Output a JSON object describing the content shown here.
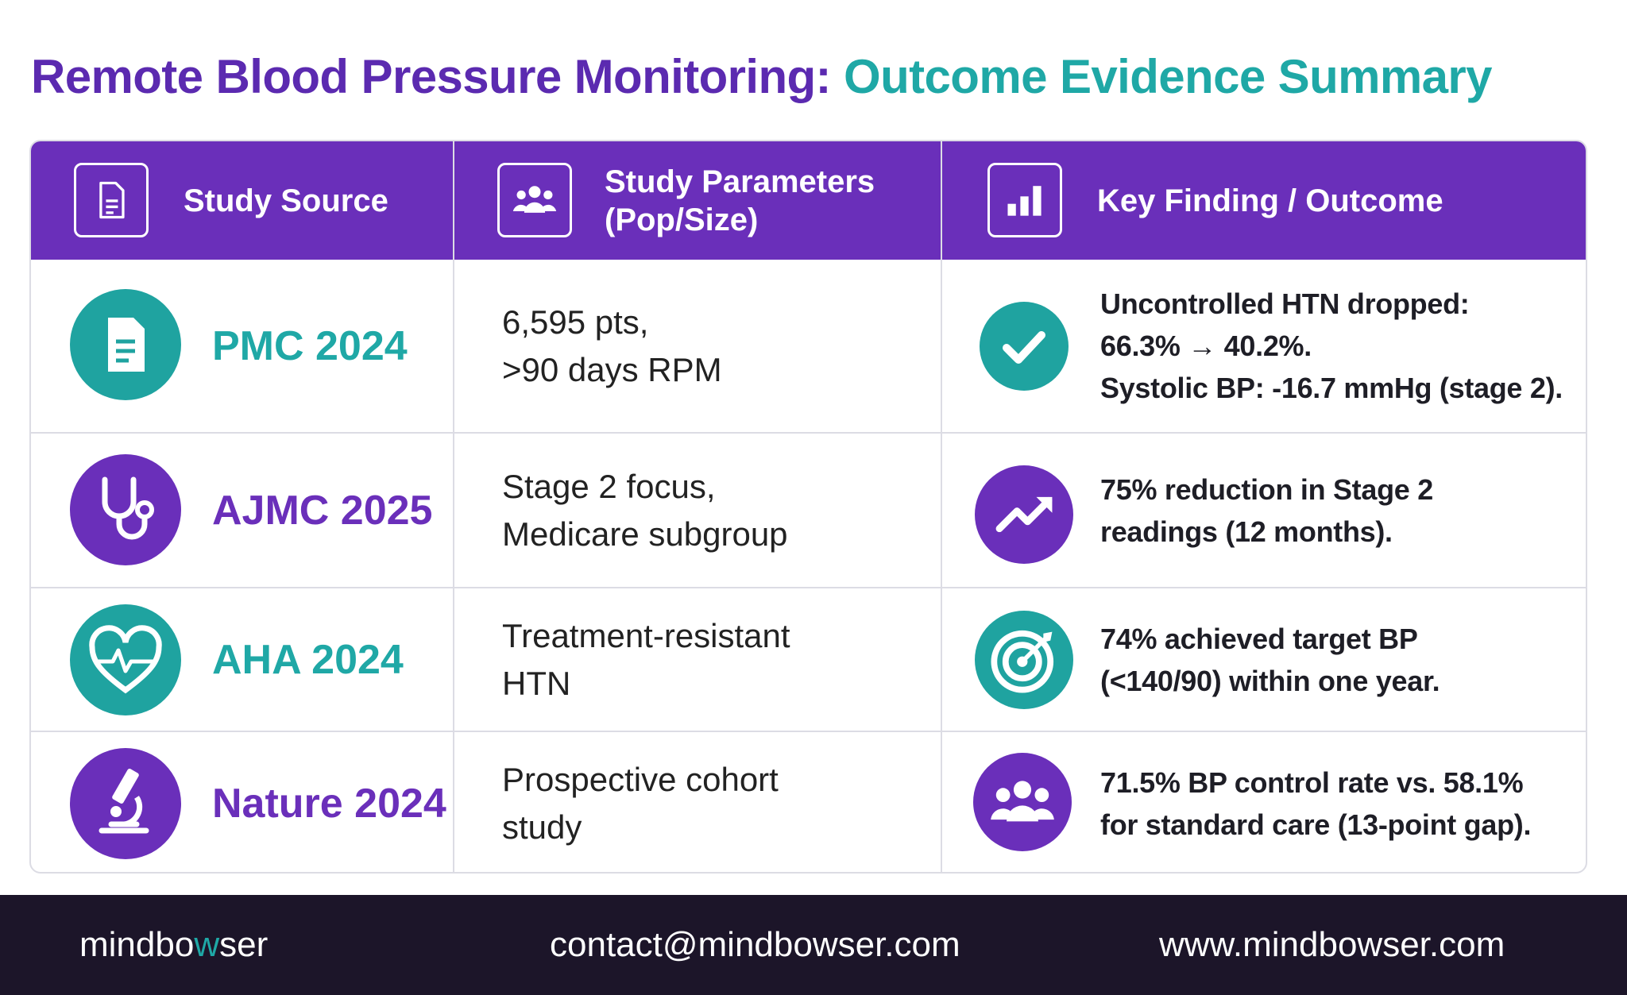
{
  "header": {
    "title": [
      "Remote Blood Pressure Monitoring:",
      "Outcome Evidence Summary"
    ]
  },
  "table": {
    "columns": [
      "Study Source",
      [
        "Study Parameters",
        "(Pop/Size)"
      ],
      "Key Finding / Outcome"
    ],
    "rows": [
      {
        "source": "PMC 2024",
        "params": [
          "6,595 pts,",
          ">90 days RPM"
        ],
        "finding": [
          "Uncontrolled HTN dropped:",
          "66.3% → 40.2%.",
          "Systolic BP: -16.7 mmHg (stage 2)."
        ]
      },
      {
        "source": "AJMC 2025",
        "params": [
          "Stage 2 focus,",
          "Medicare subgroup"
        ],
        "finding": [
          "75% reduction in Stage 2",
          "readings (12 months)."
        ]
      },
      {
        "source": "AHA 2024",
        "params": [
          "Treatment-resistant",
          "HTN"
        ],
        "finding": [
          "74% achieved target BP",
          "(<140/90) within one year."
        ]
      },
      {
        "source": "Nature 2024",
        "params": [
          "Prospective cohort",
          "study"
        ],
        "finding": [
          "71.5% BP control rate vs. 58.1%",
          "for standard care (13-point gap)."
        ]
      }
    ]
  },
  "footer": {
    "brand": [
      "mindbo",
      "w",
      "ser"
    ],
    "email": "contact@mindbowser.com",
    "website": "www.mindbowser.com"
  }
}
